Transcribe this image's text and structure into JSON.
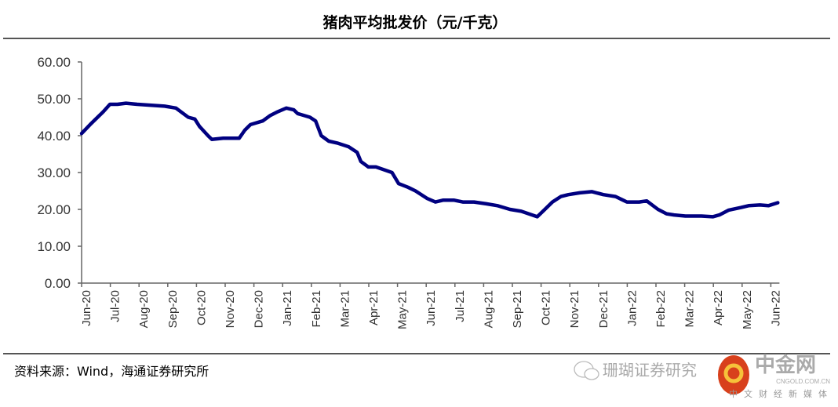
{
  "chart_data": {
    "type": "line",
    "title": "猪肉平均批发价（元/千克）",
    "xlabel": "",
    "ylabel": "",
    "ylim": [
      0,
      60
    ],
    "yticks": [
      "0.00",
      "10.00",
      "20.00",
      "30.00",
      "40.00",
      "50.00",
      "60.00"
    ],
    "xticks": [
      "Jun-20",
      "Jul-20",
      "Aug-20",
      "Sep-20",
      "Oct-20",
      "Nov-20",
      "Dec-20",
      "Jan-21",
      "Feb-21",
      "Mar-21",
      "Apr-21",
      "May-21",
      "Jun-21",
      "Jul-21",
      "Aug-21",
      "Sep-21",
      "Oct-21",
      "Nov-21",
      "Dec-21",
      "Jan-22",
      "Feb-22",
      "Mar-22",
      "Apr-22",
      "May-22",
      "Jun-22"
    ],
    "grid": false,
    "line_color": "#000080",
    "series": [
      {
        "points": [
          [
            "2020-06-01",
            40.6
          ],
          [
            "2020-06-10",
            43
          ],
          [
            "2020-06-18",
            45
          ],
          [
            "2020-06-24",
            46.5
          ],
          [
            "2020-07-01",
            48.5
          ],
          [
            "2020-07-09",
            48.5
          ],
          [
            "2020-07-18",
            48.8
          ],
          [
            "2020-07-30",
            48.5
          ],
          [
            "2020-08-11",
            48.3
          ],
          [
            "2020-08-28",
            48
          ],
          [
            "2020-09-09",
            47.5
          ],
          [
            "2020-09-22",
            45
          ],
          [
            "2020-09-29",
            44.5
          ],
          [
            "2020-10-04",
            42.5
          ],
          [
            "2020-10-13",
            40
          ],
          [
            "2020-10-17",
            39
          ],
          [
            "2020-10-29",
            39.3
          ],
          [
            "2020-11-15",
            39.3
          ],
          [
            "2020-11-21",
            41.5
          ],
          [
            "2020-11-27",
            43
          ],
          [
            "2020-12-10",
            44
          ],
          [
            "2020-12-18",
            45.5
          ],
          [
            "2020-12-26",
            46.5
          ],
          [
            "2021-01-04",
            47.5
          ],
          [
            "2021-01-12",
            47
          ],
          [
            "2021-01-16",
            46
          ],
          [
            "2021-01-29",
            45
          ],
          [
            "2021-02-04",
            44
          ],
          [
            "2021-02-10",
            40
          ],
          [
            "2021-02-18",
            38.5
          ],
          [
            "2021-02-27",
            38
          ],
          [
            "2021-03-11",
            37
          ],
          [
            "2021-03-20",
            35.5
          ],
          [
            "2021-03-24",
            33
          ],
          [
            "2021-04-01",
            31.5
          ],
          [
            "2021-04-09",
            31.5
          ],
          [
            "2021-04-26",
            30
          ],
          [
            "2021-05-03",
            27
          ],
          [
            "2021-05-13",
            26
          ],
          [
            "2021-05-21",
            25
          ],
          [
            "2021-06-02",
            23
          ],
          [
            "2021-06-11",
            22
          ],
          [
            "2021-06-19",
            22.5
          ],
          [
            "2021-07-01",
            22.5
          ],
          [
            "2021-07-10",
            22
          ],
          [
            "2021-07-22",
            22
          ],
          [
            "2021-08-04",
            21.5
          ],
          [
            "2021-08-16",
            21
          ],
          [
            "2021-08-29",
            20
          ],
          [
            "2021-09-10",
            19.5
          ],
          [
            "2021-09-27",
            18
          ],
          [
            "2021-10-05",
            20
          ],
          [
            "2021-10-13",
            22
          ],
          [
            "2021-10-22",
            23.5
          ],
          [
            "2021-10-30",
            24
          ],
          [
            "2021-11-11",
            24.5
          ],
          [
            "2021-11-24",
            24.8
          ],
          [
            "2021-12-06",
            24
          ],
          [
            "2021-12-19",
            23.5
          ],
          [
            "2021-12-27",
            22.5
          ],
          [
            "2021-12-31",
            22
          ],
          [
            "2022-01-13",
            22
          ],
          [
            "2022-01-21",
            22.3
          ],
          [
            "2022-02-02",
            20
          ],
          [
            "2022-02-11",
            18.8
          ],
          [
            "2022-02-19",
            18.5
          ],
          [
            "2022-03-03",
            18.2
          ],
          [
            "2022-03-20",
            18.2
          ],
          [
            "2022-04-01",
            18
          ],
          [
            "2022-04-08",
            18.5
          ],
          [
            "2022-04-18",
            19.8
          ],
          [
            "2022-05-01",
            20.5
          ],
          [
            "2022-05-09",
            21
          ],
          [
            "2022-05-21",
            21.2
          ],
          [
            "2022-05-30",
            21
          ],
          [
            "2022-06-09",
            21.8
          ]
        ]
      }
    ]
  },
  "source": "资料来源：Wind，海通证券研究所",
  "watermark": {
    "brand": "中金网",
    "url": "CNGOLD.COM.CN",
    "tagline": "中文财经新媒体",
    "text": "珊瑚证券研究"
  }
}
